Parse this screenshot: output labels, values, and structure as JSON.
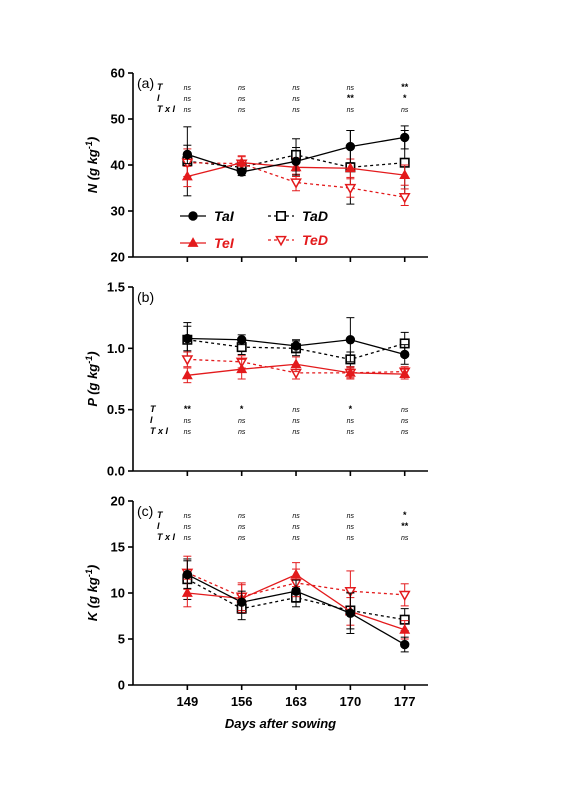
{
  "chart_data": [
    {
      "type": "line",
      "panel_label": "(a)",
      "ylabel_main": "N (g kg",
      "ylabel_sup": "-1",
      "ylabel_close": ")",
      "ylim": [
        20,
        60
      ],
      "yticks": [
        "20",
        "30",
        "40",
        "50",
        "60"
      ],
      "x": [
        149,
        156,
        163,
        170,
        177
      ],
      "series": [
        {
          "name": "TaI",
          "values": [
            42.3,
            38.5,
            40.8,
            44.0,
            46.0
          ],
          "errors": [
            2.0,
            0.8,
            3.0,
            3.5,
            2.5
          ]
        },
        {
          "name": "TaD",
          "values": [
            40.8,
            39.5,
            42.2,
            39.5,
            40.5
          ],
          "errors": [
            7.5,
            1.0,
            3.5,
            8.0,
            7.0
          ]
        },
        {
          "name": "TeI",
          "values": [
            37.5,
            40.5,
            39.5,
            39.3,
            37.8
          ],
          "errors": [
            2.2,
            1.5,
            2.0,
            2.0,
            2.2
          ]
        },
        {
          "name": "TeD",
          "values": [
            40.5,
            40.3,
            36.2,
            35.0,
            33.0
          ],
          "errors": [
            3.0,
            1.5,
            1.8,
            2.0,
            1.8
          ]
        }
      ],
      "significance": {
        "rows": [
          "T",
          "I",
          "T x I"
        ],
        "values": [
          [
            "ns",
            "ns",
            "ns",
            "ns",
            "**"
          ],
          [
            "ns",
            "ns",
            "ns",
            "**",
            "*"
          ],
          [
            "ns",
            "ns",
            "ns",
            "ns",
            "ns"
          ]
        ],
        "position": "top"
      }
    },
    {
      "type": "line",
      "panel_label": "(b)",
      "ylabel_main": "P (g kg",
      "ylabel_sup": "-1",
      "ylabel_close": ")",
      "ylim": [
        0,
        1.5
      ],
      "yticks": [
        "0.0",
        "0.5",
        "1.0",
        "1.5"
      ],
      "x": [
        149,
        156,
        163,
        170,
        177
      ],
      "series": [
        {
          "name": "TaI",
          "values": [
            1.08,
            1.07,
            1.02,
            1.07,
            0.95
          ],
          "errors": [
            0.1,
            0.04,
            0.05,
            0.18,
            0.08
          ]
        },
        {
          "name": "TaD",
          "values": [
            1.07,
            1.01,
            1.0,
            0.91,
            1.04
          ],
          "errors": [
            0.14,
            0.06,
            0.06,
            0.06,
            0.09
          ]
        },
        {
          "name": "TeI",
          "values": [
            0.78,
            0.83,
            0.87,
            0.8,
            0.79
          ],
          "errors": [
            0.06,
            0.08,
            0.06,
            0.05,
            0.04
          ]
        },
        {
          "name": "TeD",
          "values": [
            0.91,
            0.89,
            0.8,
            0.8,
            0.81
          ],
          "errors": [
            0.06,
            0.05,
            0.05,
            0.04,
            0.04
          ]
        }
      ],
      "significance": {
        "rows": [
          "T",
          "I",
          "T x I"
        ],
        "values": [
          [
            "**",
            "*",
            "ns",
            "*",
            "ns"
          ],
          [
            "ns",
            "ns",
            "ns",
            "ns",
            "ns"
          ],
          [
            "ns",
            "ns",
            "ns",
            "ns",
            "ns"
          ]
        ],
        "position": "middle"
      }
    },
    {
      "type": "line",
      "panel_label": "(c)",
      "ylabel_main": "K (g kg",
      "ylabel_sup": "-1",
      "ylabel_close": ")",
      "ylim": [
        0,
        20
      ],
      "yticks": [
        "0",
        "5",
        "10",
        "15",
        "20"
      ],
      "x": [
        149,
        156,
        163,
        170,
        177
      ],
      "xticks": [
        "149",
        "156",
        "163",
        "170",
        "177"
      ],
      "xlabel": "Days after sowing",
      "series": [
        {
          "name": "TaI",
          "values": [
            12.0,
            9.0,
            10.2,
            7.8,
            4.4
          ],
          "errors": [
            1.5,
            1.2,
            1.2,
            2.2,
            0.8
          ]
        },
        {
          "name": "TaD",
          "values": [
            11.5,
            8.3,
            9.5,
            8.1,
            7.1
          ],
          "errors": [
            2.2,
            1.2,
            1.0,
            2.0,
            1.2
          ]
        },
        {
          "name": "TeI",
          "values": [
            10.0,
            9.4,
            12.0,
            8.0,
            6.0
          ],
          "errors": [
            1.5,
            1.5,
            1.3,
            1.5,
            1.0
          ]
        },
        {
          "name": "TeD",
          "values": [
            12.2,
            9.6,
            11.1,
            10.2,
            9.8
          ],
          "errors": [
            1.8,
            1.5,
            1.5,
            2.2,
            1.2
          ]
        }
      ],
      "significance": {
        "rows": [
          "T",
          "I",
          "T x I"
        ],
        "values": [
          [
            "ns",
            "ns",
            "ns",
            "ns",
            "*"
          ],
          [
            "ns",
            "ns",
            "ns",
            "ns",
            "**"
          ],
          [
            "ns",
            "ns",
            "ns",
            "ns",
            "ns"
          ]
        ],
        "position": "top"
      }
    }
  ],
  "legend": {
    "entries": [
      {
        "name": "TaI",
        "color": "#000000",
        "marker": "circle-filled",
        "line": "solid"
      },
      {
        "name": "TaD",
        "color": "#000000",
        "marker": "square-open",
        "line": "dotted"
      },
      {
        "name": "TeI",
        "color": "#e31a1c",
        "marker": "triangle-up-filled",
        "line": "solid"
      },
      {
        "name": "TeD",
        "color": "#e31a1c",
        "marker": "triangle-down-open",
        "line": "dotted"
      }
    ]
  },
  "colors": {
    "black": "#000000",
    "red": "#e31a1c"
  }
}
